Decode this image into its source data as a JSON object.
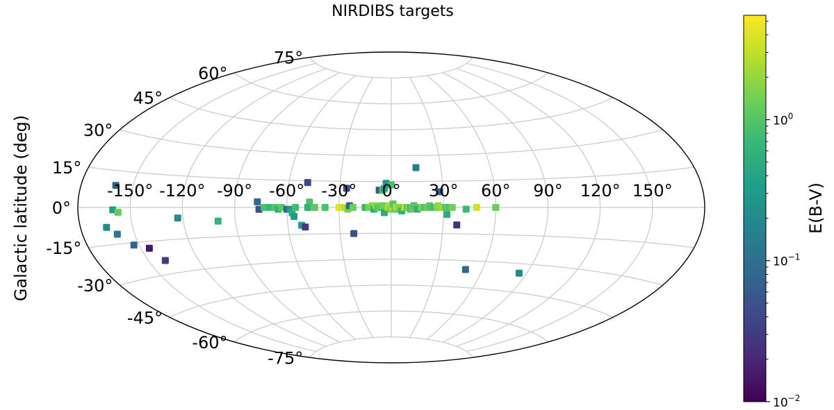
{
  "chart_data": {
    "type": "scatter",
    "projection": "aitoff (Galactic, all-sky)",
    "title": "NIRDIBS targets",
    "xlabel": "",
    "ylabel": "Galactic latitude (deg)",
    "longitude_ticks": [
      "-150°",
      "-120°",
      "-90°",
      "-60°",
      "-30°",
      "0°",
      "30°",
      "60°",
      "90°",
      "120°",
      "150°"
    ],
    "latitude_ticks": [
      "75°",
      "60°",
      "45°",
      "30°",
      "15°",
      "0°",
      "-15°",
      "-30°",
      "-45°",
      "-60°",
      "-75°"
    ],
    "grid": true,
    "marker": "square",
    "colormap": "viridis",
    "colorbar": {
      "label": "E(B-V)",
      "scale": "log",
      "range": [
        0.01,
        5.5
      ],
      "tick_labels": [
        {
          "base": "10",
          "exp": "0",
          "value": 1
        },
        {
          "base": "10",
          "exp": "−1",
          "value": 0.1
        },
        {
          "base": "10",
          "exp": "−2",
          "value": 0.01
        }
      ]
    },
    "colors": {
      "viridis": [
        "#440154",
        "#482878",
        "#3e4989",
        "#31688e",
        "#26828e",
        "#1f9e89",
        "#35b779",
        "#6ece58",
        "#b5de2b",
        "#fde725"
      ],
      "ellipse": "#000000",
      "grid": "#c8c8c8"
    },
    "points": [
      {
        "lon": -160,
        "lat": 9,
        "ebv": 0.08
      },
      {
        "lon": -160,
        "lat": -1,
        "ebv": 0.35
      },
      {
        "lon": -157,
        "lat": -2,
        "ebv": 1.2
      },
      {
        "lon": -165,
        "lat": -8,
        "ebv": 0.2
      },
      {
        "lon": -160,
        "lat": -11,
        "ebv": 0.12
      },
      {
        "lon": -153,
        "lat": -16,
        "ebv": 0.07
      },
      {
        "lon": -145,
        "lat": -18,
        "ebv": 0.015
      },
      {
        "lon": -140,
        "lat": -24,
        "ebv": 0.03
      },
      {
        "lon": -123,
        "lat": -5,
        "ebv": 0.2
      },
      {
        "lon": -100,
        "lat": -7,
        "ebv": 0.6
      },
      {
        "lon": -77,
        "lat": 3,
        "ebv": 0.08
      },
      {
        "lon": -76,
        "lat": -1,
        "ebv": 0.05
      },
      {
        "lon": -73,
        "lat": 0,
        "ebv": 0.9
      },
      {
        "lon": -70,
        "lat": 0,
        "ebv": 0.7
      },
      {
        "lon": -67,
        "lat": 0,
        "ebv": 1.0
      },
      {
        "lon": -65,
        "lat": -1,
        "ebv": 0.6
      },
      {
        "lon": -63,
        "lat": 0,
        "ebv": 1.1
      },
      {
        "lon": -60,
        "lat": -1,
        "ebv": 0.09
      },
      {
        "lon": -58,
        "lat": -1,
        "ebv": 0.3
      },
      {
        "lon": -57,
        "lat": -3,
        "ebv": 0.5
      },
      {
        "lon": -56,
        "lat": -5,
        "ebv": 0.3
      },
      {
        "lon": -55,
        "lat": 0,
        "ebv": 0.8
      },
      {
        "lon": -52,
        "lat": -10,
        "ebv": 0.3
      },
      {
        "lon": -50,
        "lat": -11,
        "ebv": 0.03
      },
      {
        "lon": -49,
        "lat": 14,
        "ebv": 0.04
      },
      {
        "lon": -47,
        "lat": 3,
        "ebv": 0.9
      },
      {
        "lon": -48,
        "lat": 0,
        "ebv": 0.6
      },
      {
        "lon": -44,
        "lat": 0,
        "ebv": 1.1
      },
      {
        "lon": -38,
        "lat": 0,
        "ebv": 0.9
      },
      {
        "lon": -30,
        "lat": 0,
        "ebv": 4.0
      },
      {
        "lon": -27,
        "lat": 0,
        "ebv": 3.0
      },
      {
        "lon": -25,
        "lat": -1,
        "ebv": 1.5
      },
      {
        "lon": -24,
        "lat": 1,
        "ebv": 0.08
      },
      {
        "lon": -22,
        "lat": 0,
        "ebv": 1.3
      },
      {
        "lon": -26,
        "lat": 11,
        "ebv": 0.05
      },
      {
        "lon": -22,
        "lat": -15,
        "ebv": 0.05
      },
      {
        "lon": -15,
        "lat": 0,
        "ebv": 0.7
      },
      {
        "lon": -13,
        "lat": 0,
        "ebv": 1.5
      },
      {
        "lon": -11,
        "lat": 1,
        "ebv": 1.8
      },
      {
        "lon": -10,
        "lat": -1,
        "ebv": 0.5
      },
      {
        "lon": -9,
        "lat": 1,
        "ebv": 2.0
      },
      {
        "lon": -8,
        "lat": 0,
        "ebv": 1.0
      },
      {
        "lon": -7,
        "lat": 0,
        "ebv": 1.2
      },
      {
        "lon": -7,
        "lat": 10,
        "ebv": 0.06
      },
      {
        "lon": -6,
        "lat": 0,
        "ebv": 1.0
      },
      {
        "lon": -5,
        "lat": 10,
        "ebv": 0.9
      },
      {
        "lon": -5,
        "lat": 1,
        "ebv": 1.3
      },
      {
        "lon": -4,
        "lat": -3,
        "ebv": 0.5
      },
      {
        "lon": -4,
        "lat": 11,
        "ebv": 0.4
      },
      {
        "lon": -3,
        "lat": 14,
        "ebv": 0.25
      },
      {
        "lon": -2,
        "lat": 0,
        "ebv": 2.0
      },
      {
        "lon": -2,
        "lat": 13,
        "ebv": 0.3
      },
      {
        "lon": -1,
        "lat": 1,
        "ebv": 2.5
      },
      {
        "lon": 0,
        "lat": -1,
        "ebv": 1.5
      },
      {
        "lon": 0,
        "lat": 13,
        "ebv": 0.8
      },
      {
        "lon": 1,
        "lat": 0,
        "ebv": 3.0
      },
      {
        "lon": 1,
        "lat": 2,
        "ebv": 1.0
      },
      {
        "lon": 2,
        "lat": -1,
        "ebv": 1.2
      },
      {
        "lon": 3,
        "lat": 0,
        "ebv": 2.5
      },
      {
        "lon": 4,
        "lat": 0,
        "ebv": 2.0
      },
      {
        "lon": 5,
        "lat": -1,
        "ebv": 0.8
      },
      {
        "lon": 5,
        "lat": 0,
        "ebv": 1.5
      },
      {
        "lon": 6,
        "lat": 0,
        "ebv": 2.0
      },
      {
        "lon": 6,
        "lat": -2,
        "ebv": 0.6
      },
      {
        "lon": 7,
        "lat": 0,
        "ebv": 1.2
      },
      {
        "lon": 8,
        "lat": 0,
        "ebv": 4.0
      },
      {
        "lon": 9,
        "lat": 0,
        "ebv": 2.5
      },
      {
        "lon": 9,
        "lat": 0,
        "ebv": 1.0
      },
      {
        "lon": 10,
        "lat": 0,
        "ebv": 1.8
      },
      {
        "lon": 11,
        "lat": -1,
        "ebv": 1.0
      },
      {
        "lon": 11,
        "lat": 0,
        "ebv": 0.7
      },
      {
        "lon": 12,
        "lat": 0,
        "ebv": 1.3
      },
      {
        "lon": 13,
        "lat": 0,
        "ebv": 1.5
      },
      {
        "lon": 13,
        "lat": 1,
        "ebv": 0.9
      },
      {
        "lon": 14,
        "lat": 0,
        "ebv": 1.1
      },
      {
        "lon": 15,
        "lat": -1,
        "ebv": 0.5
      },
      {
        "lon": 15,
        "lat": 23,
        "ebv": 0.15
      },
      {
        "lon": 17,
        "lat": 0,
        "ebv": 1.2
      },
      {
        "lon": 18,
        "lat": 0,
        "ebv": 2.0
      },
      {
        "lon": 19,
        "lat": 0,
        "ebv": 0.8
      },
      {
        "lon": 20,
        "lat": 0,
        "ebv": 1.0
      },
      {
        "lon": 21,
        "lat": 0,
        "ebv": 1.3
      },
      {
        "lon": 22,
        "lat": 1,
        "ebv": 1.1
      },
      {
        "lon": 23,
        "lat": 0,
        "ebv": 0.9
      },
      {
        "lon": 24,
        "lat": 0,
        "ebv": 1.0
      },
      {
        "lon": 25,
        "lat": 0,
        "ebv": 0.7
      },
      {
        "lon": 26,
        "lat": 0,
        "ebv": 1.4
      },
      {
        "lon": 27,
        "lat": 1,
        "ebv": 1.8
      },
      {
        "lon": 29,
        "lat": 0,
        "ebv": 2.2
      },
      {
        "lon": 31,
        "lat": 0,
        "ebv": 1.1
      },
      {
        "lon": 33,
        "lat": 0,
        "ebv": 0.9
      },
      {
        "lon": 35,
        "lat": 0,
        "ebv": 1.4
      },
      {
        "lon": 28,
        "lat": 9,
        "ebv": 0.07
      },
      {
        "lon": 32,
        "lat": -4,
        "ebv": 0.5
      },
      {
        "lon": 38,
        "lat": -10,
        "ebv": 0.025
      },
      {
        "lon": 43,
        "lat": -1,
        "ebv": 0.7
      },
      {
        "lon": 49,
        "lat": 0,
        "ebv": 3.5
      },
      {
        "lon": 60,
        "lat": 0,
        "ebv": 1.3
      },
      {
        "lon": 49,
        "lat": -35,
        "ebv": 0.08
      },
      {
        "lon": 85,
        "lat": -35,
        "ebv": 0.2
      }
    ]
  }
}
